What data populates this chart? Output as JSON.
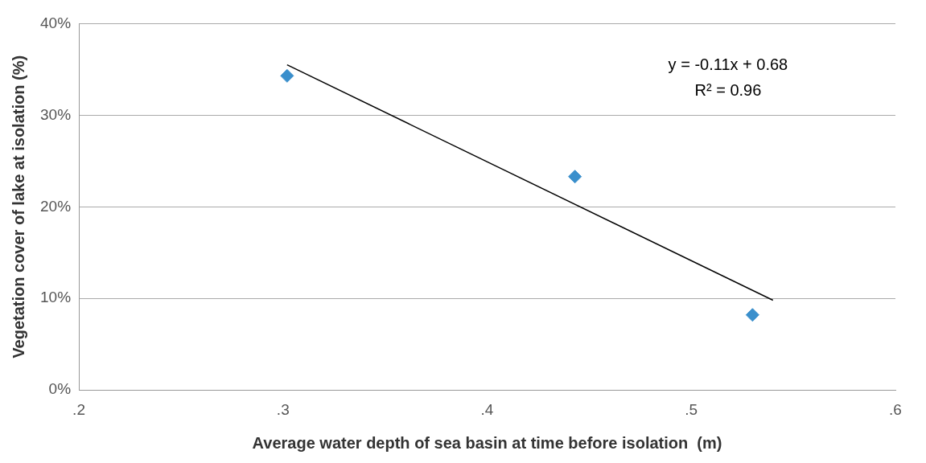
{
  "chart_data": {
    "type": "scatter",
    "xlabel": "Average water depth of sea basin at time before isolation  (m)",
    "ylabel": "Vegetation cover of lake at isolation (%)",
    "series": [
      {
        "color": "#3a8fcc",
        "x": [
          0.302,
          0.443,
          0.53
        ],
        "values": [
          34.3,
          23.3,
          8.2
        ],
        "marker": "diamond"
      },
      {
        "type": "line",
        "color": "#000000",
        "x": [
          0.302,
          0.54
        ],
        "values": [
          35.5,
          9.8
        ],
        "marker": "none"
      }
    ],
    "xlim": [
      0.2,
      0.6
    ],
    "xticks": [
      {
        "value": 0.2,
        "label": ".2"
      },
      {
        "value": 0.3,
        "label": ".3"
      },
      {
        "value": 0.4,
        "label": ".4"
      },
      {
        "value": 0.5,
        "label": ".5"
      },
      {
        "value": 0.6,
        "label": ".6"
      }
    ],
    "ylim": [
      0,
      40
    ],
    "yticks": [
      {
        "value": 0,
        "label": "0%"
      },
      {
        "value": 10,
        "label": "10%"
      },
      {
        "value": 20,
        "label": "20%"
      },
      {
        "value": 30,
        "label": "30%"
      },
      {
        "value": 40,
        "label": "40%"
      }
    ],
    "grid": "y",
    "legend": false,
    "annotations": [
      "y = -0.11x + 0.68",
      "R² = 0.96"
    ]
  }
}
